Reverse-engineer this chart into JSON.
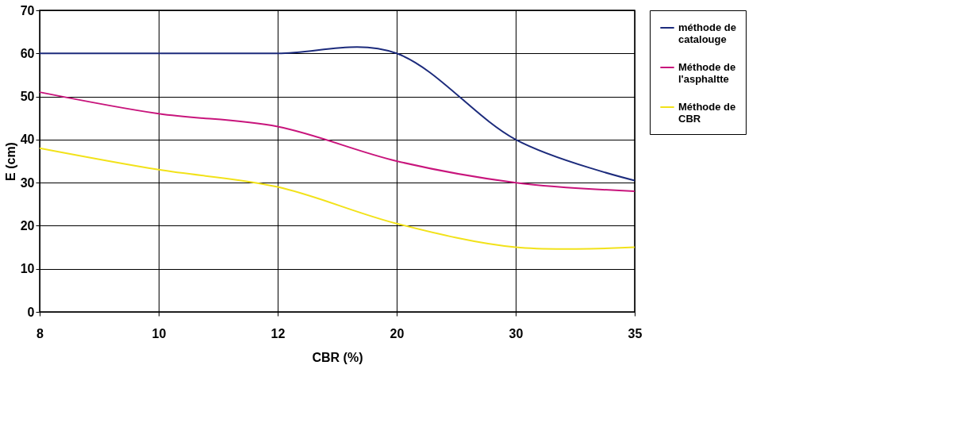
{
  "chart_data": {
    "type": "line",
    "xlabel": "CBR (%)",
    "ylabel": "E (cm)",
    "categories": [
      "8",
      "10",
      "12",
      "20",
      "30",
      "35"
    ],
    "series": [
      {
        "name": "méthode de catalouge",
        "color": "#1c2b7c",
        "values": [
          60,
          60,
          60,
          60,
          40,
          30.5
        ]
      },
      {
        "name": "Méthode de l'asphaltte",
        "color": "#c8157c",
        "values": [
          51,
          46,
          43,
          35,
          30,
          28
        ]
      },
      {
        "name": "Méthode de CBR",
        "color": "#f2e21a",
        "values": [
          38,
          33,
          29,
          20.5,
          15,
          15
        ]
      }
    ],
    "ylim": [
      0,
      70
    ],
    "yticks": [
      0,
      10,
      20,
      30,
      40,
      50,
      60,
      70
    ],
    "grid": true,
    "legend": "right",
    "marker": "none",
    "line_style": "solid"
  }
}
